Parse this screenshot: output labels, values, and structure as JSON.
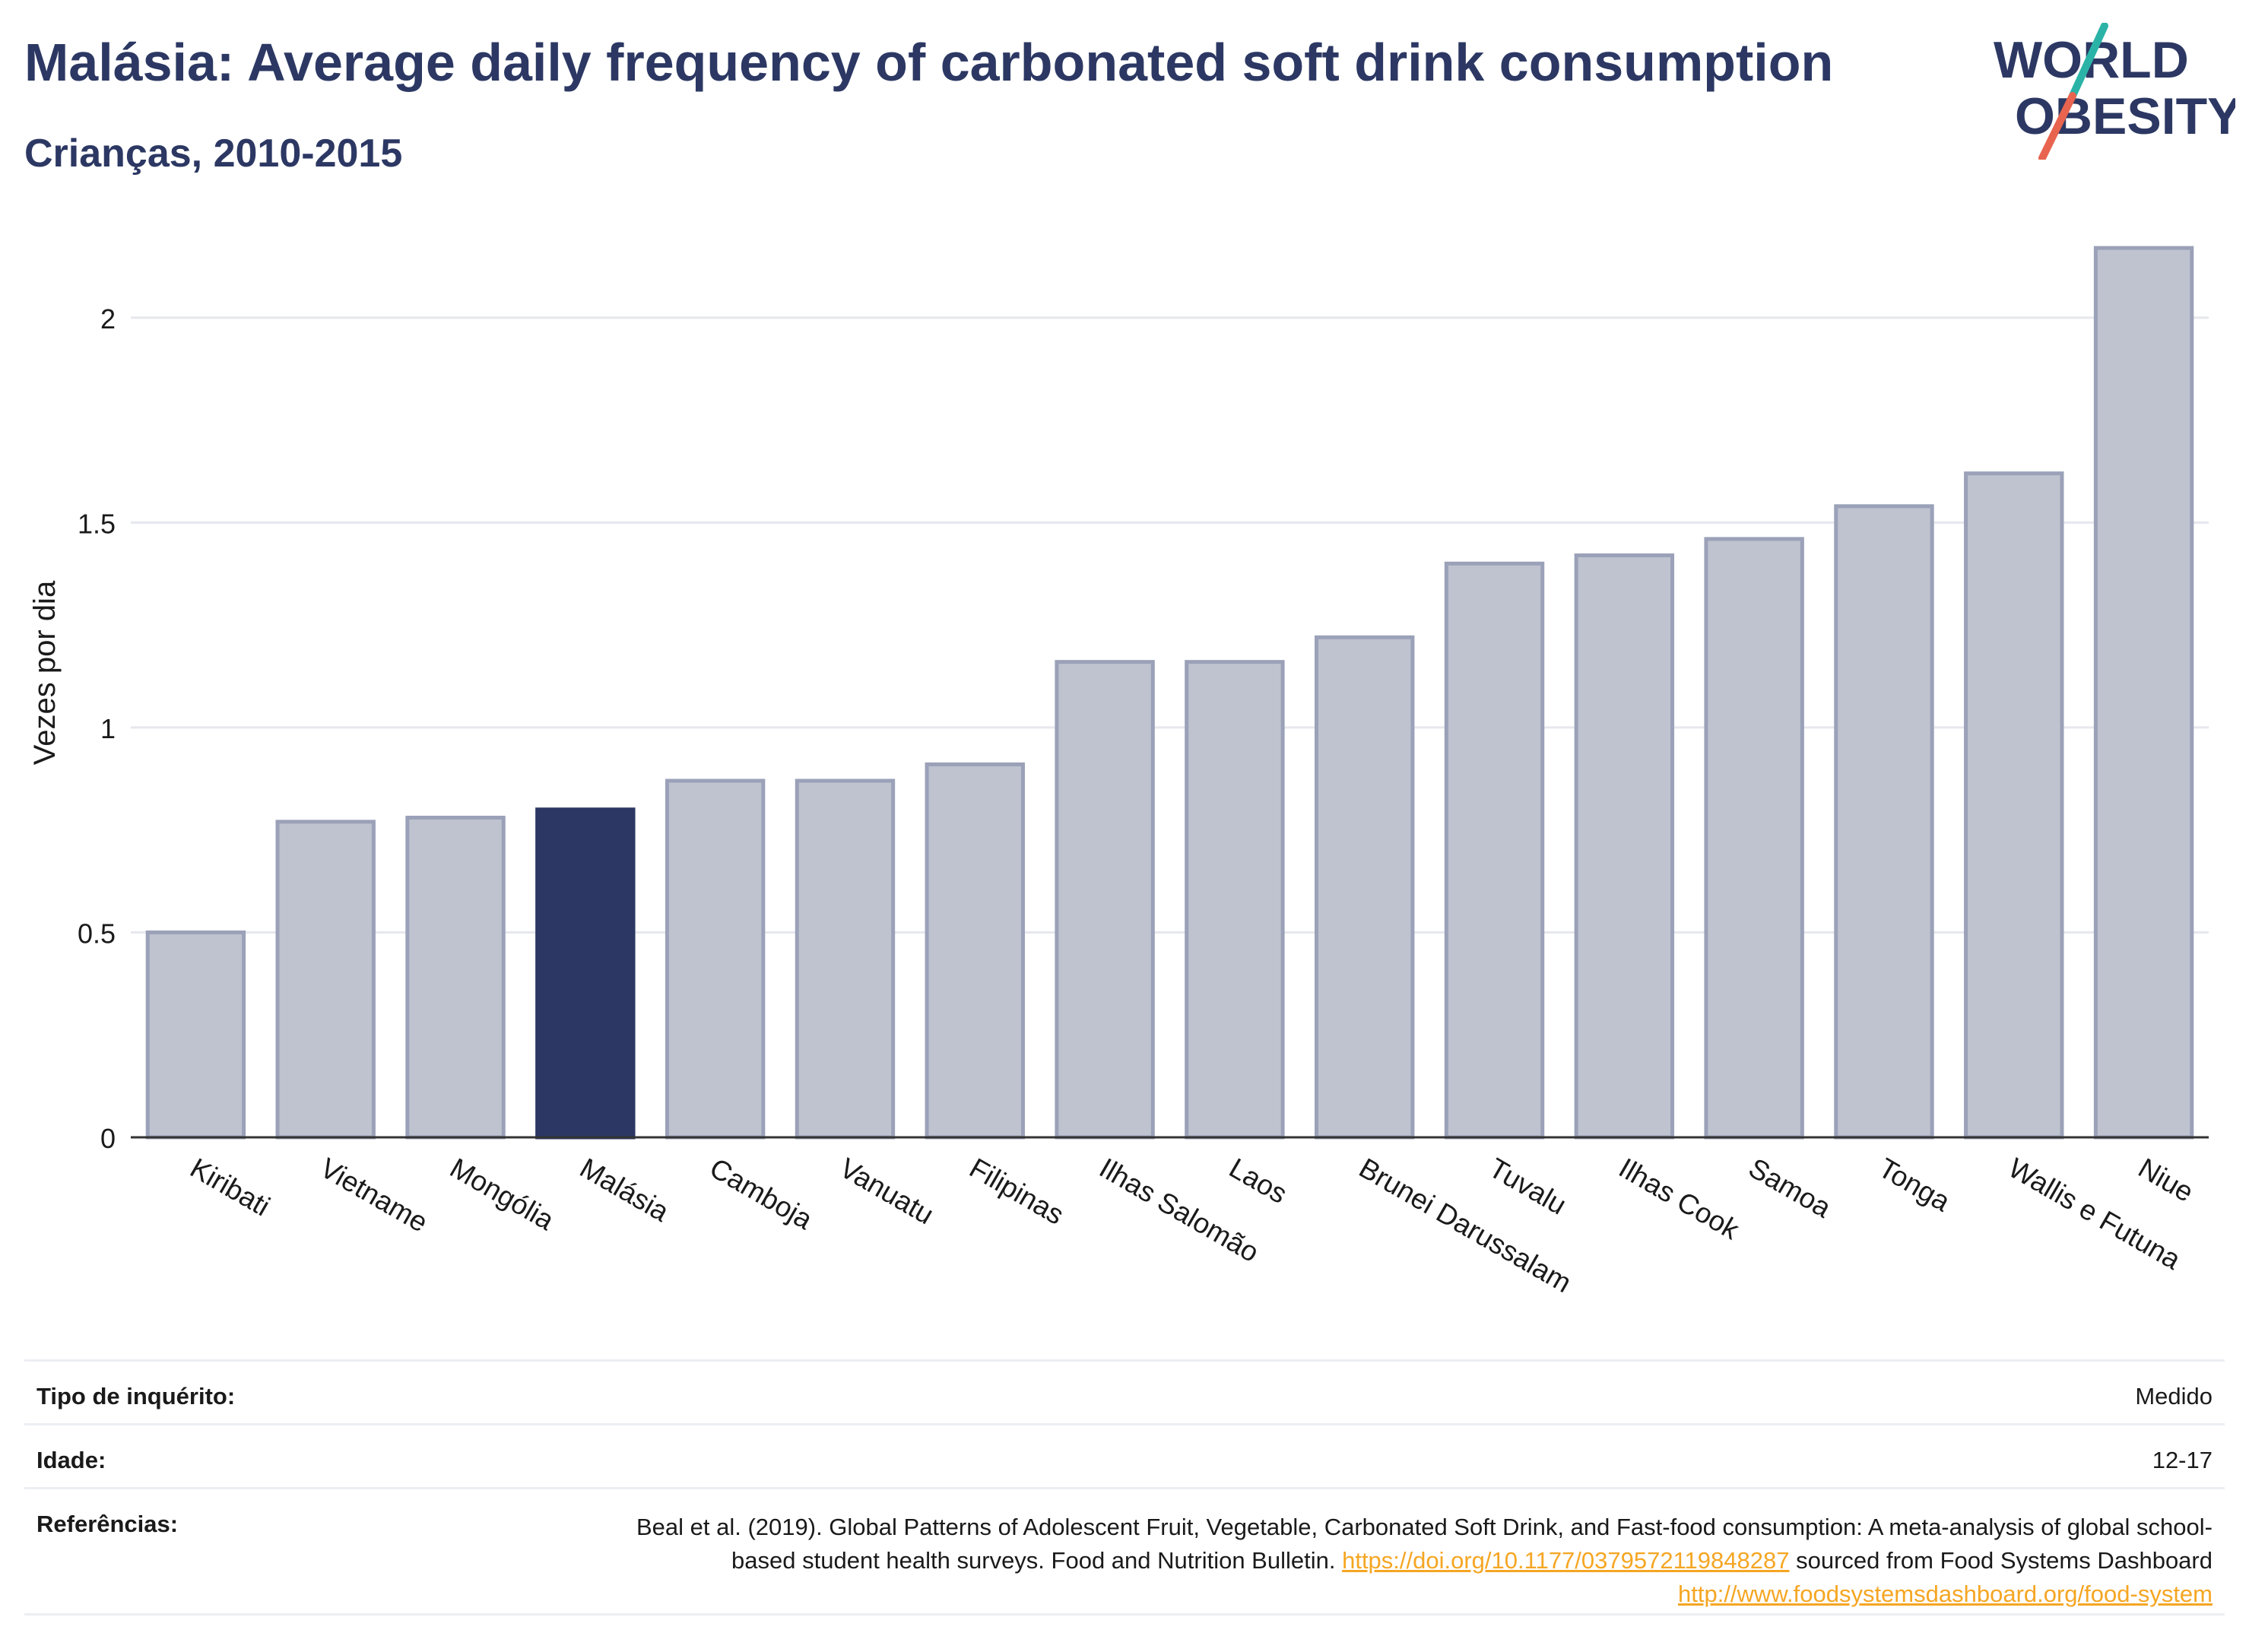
{
  "header": {
    "title": "Malásia: Average daily frequency of carbonated soft drink consumption",
    "subtitle": "Crianças, 2010-2015"
  },
  "logo": {
    "line1": "WORLD",
    "line2": "OBESITY",
    "accent_teal": "#2bb3a7",
    "accent_red": "#e8644f",
    "text_color": "#2c3863"
  },
  "colors": {
    "highlight_bar": "#2c3863",
    "other_bar": "#bfc3cf",
    "bar_stroke": "#9aa1b8",
    "grid": "#e6e8ee",
    "link": "#f5a623"
  },
  "chart_data": {
    "type": "bar",
    "categories": [
      "Kiribati",
      "Vietname",
      "Mongólia",
      "Malásia",
      "Camboja",
      "Vanuatu",
      "Filipinas",
      "Ilhas Salomão",
      "Laos",
      "Brunei Darussalam",
      "Tuvalu",
      "Ilhas Cook",
      "Samoa",
      "Tonga",
      "Wallis e Futuna",
      "Niue"
    ],
    "values": [
      0.5,
      0.77,
      0.78,
      0.8,
      0.87,
      0.87,
      0.91,
      1.16,
      1.16,
      1.22,
      1.4,
      1.42,
      1.46,
      1.54,
      1.62,
      2.17
    ],
    "highlight": "Malásia",
    "ylabel": "Vezes por dia",
    "xlabel": "",
    "ylim": [
      0,
      2.2
    ],
    "yticks": [
      0,
      0.5,
      1,
      1.5,
      2
    ],
    "ytick_labels": [
      "0",
      "0.5",
      "1",
      "1.5",
      "2"
    ],
    "grid": true
  },
  "info": {
    "survey_label": "Tipo de inquérito:",
    "survey_value": "Medido",
    "age_label": "Idade:",
    "age_value": "12-17",
    "ref_label": "Referências:",
    "ref_text1": "Beal et al. (2019). Global Patterns of Adolescent Fruit, Vegetable, Carbonated Soft Drink, and Fast-food consumption: A meta-analysis of global school-based student health surveys. Food and Nutrition Bulletin. ",
    "ref_link1": "https://doi.org/10.1177/0379572119848287",
    "ref_text2": " sourced from Food Systems Dashboard ",
    "ref_link2": "http://www.foodsystemsdashboard.org/food-system"
  }
}
